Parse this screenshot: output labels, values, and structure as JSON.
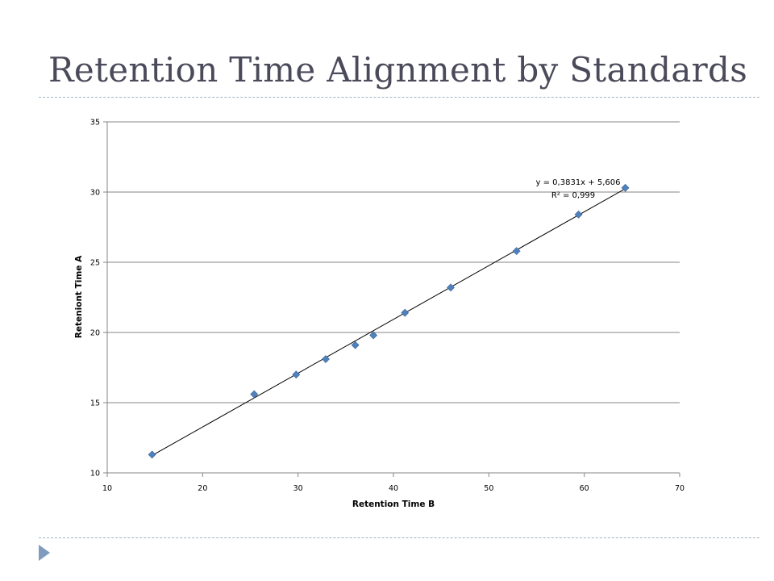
{
  "slide": {
    "title": "Retention Time Alignment by Standards"
  },
  "chart_data": {
    "type": "scatter",
    "title": "",
    "xlabel": "Retention Time B",
    "ylabel": "Reteniont Time A",
    "xlim": [
      10,
      70
    ],
    "ylim": [
      10,
      35
    ],
    "xticks": [
      10,
      20,
      30,
      40,
      50,
      60,
      70
    ],
    "yticks": [
      10,
      15,
      20,
      25,
      30,
      35
    ],
    "grid": {
      "horizontal": true,
      "vertical": false
    },
    "legend": "none",
    "series": [
      {
        "marker": "diamond",
        "color": "#4f81bd",
        "points": [
          {
            "x": 14.7,
            "y": 11.3
          },
          {
            "x": 25.4,
            "y": 15.6
          },
          {
            "x": 29.8,
            "y": 17.0
          },
          {
            "x": 32.9,
            "y": 18.1
          },
          {
            "x": 36.0,
            "y": 19.1
          },
          {
            "x": 37.9,
            "y": 19.8
          },
          {
            "x": 41.2,
            "y": 21.4
          },
          {
            "x": 46.0,
            "y": 23.2
          },
          {
            "x": 52.9,
            "y": 25.8
          },
          {
            "x": 59.4,
            "y": 28.4
          },
          {
            "x": 64.3,
            "y": 30.3
          }
        ]
      }
    ],
    "trendline": {
      "type": "linear",
      "slope": 0.3831,
      "intercept": 5.606,
      "x_range": [
        14.7,
        64.3
      ],
      "equation_label": "y = 0,3831x + 5,606",
      "r2_label": "R² = 0,999"
    }
  }
}
